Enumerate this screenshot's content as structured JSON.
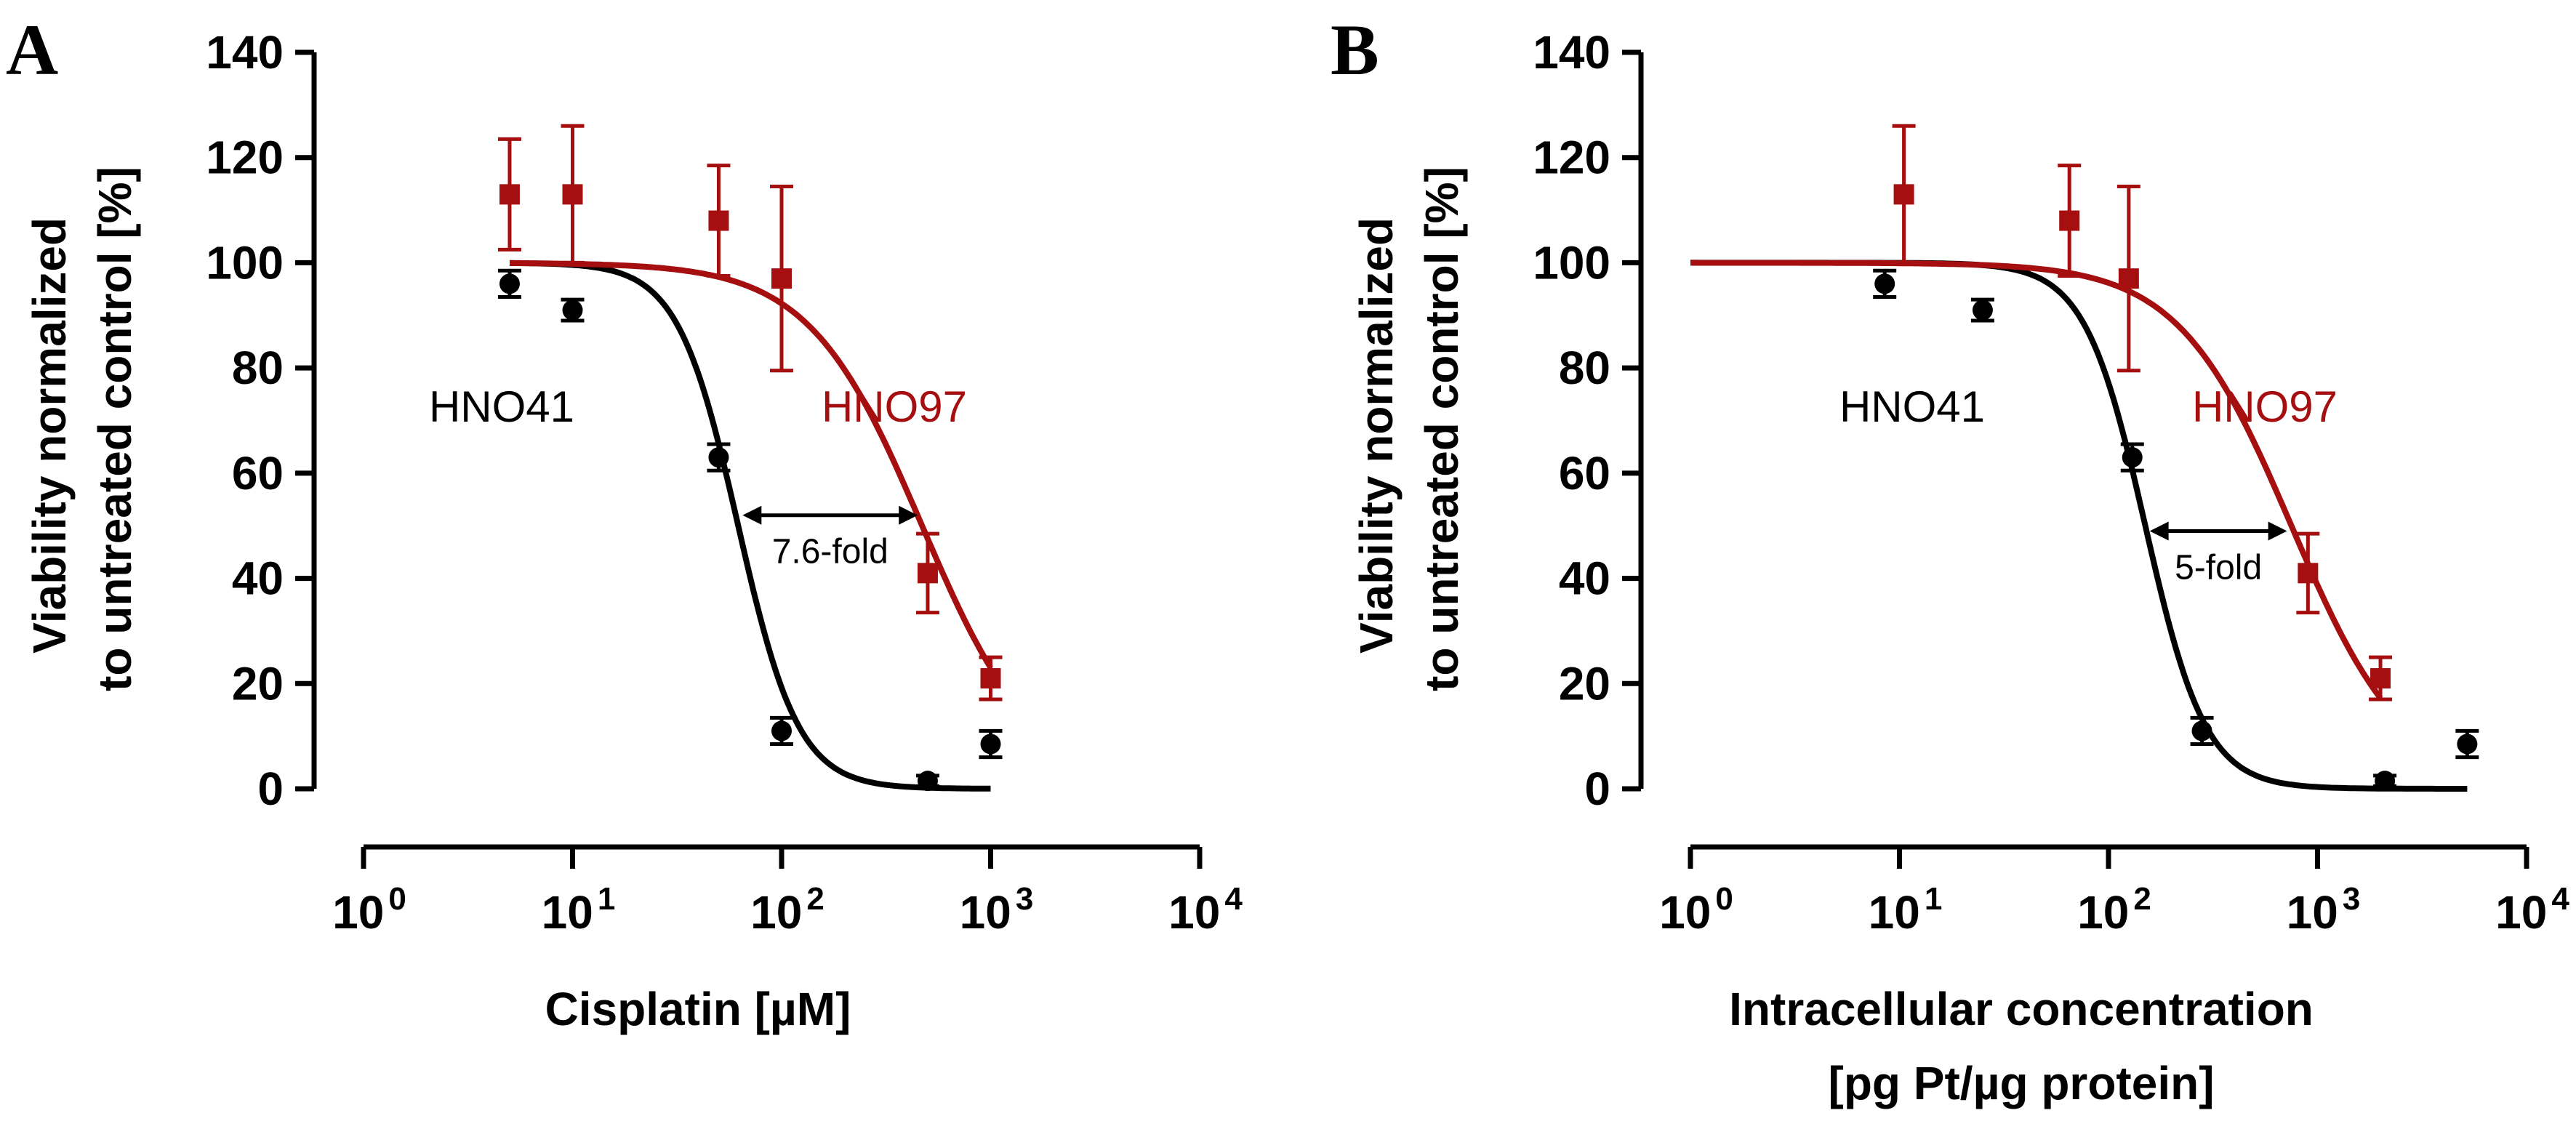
{
  "chart_data": [
    {
      "panel": "A",
      "type": "scatter",
      "xscale": "log",
      "xlim": [
        1,
        10000
      ],
      "ylim": [
        0,
        140
      ],
      "x_ticks": [
        {
          "base": "10",
          "exp": "0"
        },
        {
          "base": "10",
          "exp": "1"
        },
        {
          "base": "10",
          "exp": "2"
        },
        {
          "base": "10",
          "exp": "3"
        },
        {
          "base": "10",
          "exp": "4"
        }
      ],
      "y_ticks": [
        "0",
        "20",
        "40",
        "60",
        "80",
        "100",
        "120",
        "140"
      ],
      "y_tick_values": [
        0,
        20,
        40,
        60,
        80,
        100,
        120,
        140
      ],
      "ylabel_lines": [
        "Viability normalized",
        "to untreated control [%]"
      ],
      "xlabel_lines": [
        "Cisplatin [µM]"
      ],
      "series": [
        {
          "name": "HNO41",
          "color": "#000000",
          "marker": "circle",
          "x": [
            5,
            10,
            50,
            100,
            500,
            1000
          ],
          "y": [
            96,
            91,
            63,
            11,
            1.5,
            8.5
          ],
          "err": [
            2.5,
            2,
            2.5,
            2.5,
            1,
            2.5
          ],
          "fit": {
            "top": 100,
            "bottom": 0,
            "ec50": 62,
            "hill": 3.0,
            "xmin": 5,
            "xmax": 1000
          }
        },
        {
          "name": "HNO97",
          "color": "#a50f0f",
          "marker": "square",
          "x": [
            5,
            10,
            50,
            100,
            500,
            1000
          ],
          "y": [
            113,
            113,
            108,
            97,
            41,
            21
          ],
          "err": [
            10.5,
            13,
            10.5,
            17.5,
            7.5,
            4
          ],
          "fit": {
            "top": 100,
            "bottom": 0,
            "ec50": 470,
            "hill": 1.6,
            "xmin": 5,
            "xmax": 1000
          }
        }
      ],
      "fold_annotation": {
        "text": "7.6-fold",
        "x1": 62,
        "x2": 470,
        "y": 52
      }
    },
    {
      "panel": "B",
      "type": "scatter",
      "xscale": "log",
      "xlim": [
        1,
        10000
      ],
      "ylim": [
        0,
        140
      ],
      "x_ticks": [
        {
          "base": "10",
          "exp": "0"
        },
        {
          "base": "10",
          "exp": "1"
        },
        {
          "base": "10",
          "exp": "2"
        },
        {
          "base": "10",
          "exp": "3"
        },
        {
          "base": "10",
          "exp": "4"
        }
      ],
      "y_ticks": [
        "0",
        "20",
        "40",
        "60",
        "80",
        "100",
        "120",
        "140"
      ],
      "y_tick_values": [
        0,
        20,
        40,
        60,
        80,
        100,
        120,
        140
      ],
      "ylabel_lines": [
        "Viability normalized",
        "to untreated control [%]"
      ],
      "xlabel_lines": [
        "Intracellular concentration",
        "[pg Pt/µg protein]"
      ],
      "series": [
        {
          "name": "HNO41",
          "color": "#000000",
          "marker": "circle",
          "x": [
            8.5,
            25,
            130,
            280,
            2100,
            5200
          ],
          "y": [
            96,
            91,
            63,
            11,
            1.5,
            8.5
          ],
          "err": [
            2.5,
            2,
            2.5,
            2.5,
            1,
            2.5
          ],
          "fit": {
            "top": 100,
            "bottom": 0,
            "ec50": 150,
            "hill": 3.0,
            "xmin": 1,
            "xmax": 5200
          }
        },
        {
          "name": "HNO97",
          "color": "#a50f0f",
          "marker": "square",
          "x": [
            10.5,
            65,
            125,
            900,
            2000
          ],
          "y": [
            113,
            108,
            97,
            41,
            21
          ],
          "err": [
            13,
            10.5,
            17.5,
            7.5,
            4
          ],
          "fit": {
            "top": 100,
            "bottom": 0,
            "ec50": 750,
            "hill": 1.6,
            "xmin": 1,
            "xmax": 2000
          }
        }
      ],
      "fold_annotation": {
        "text": "5-fold",
        "x1": 150,
        "x2": 750,
        "y": 49
      }
    }
  ]
}
